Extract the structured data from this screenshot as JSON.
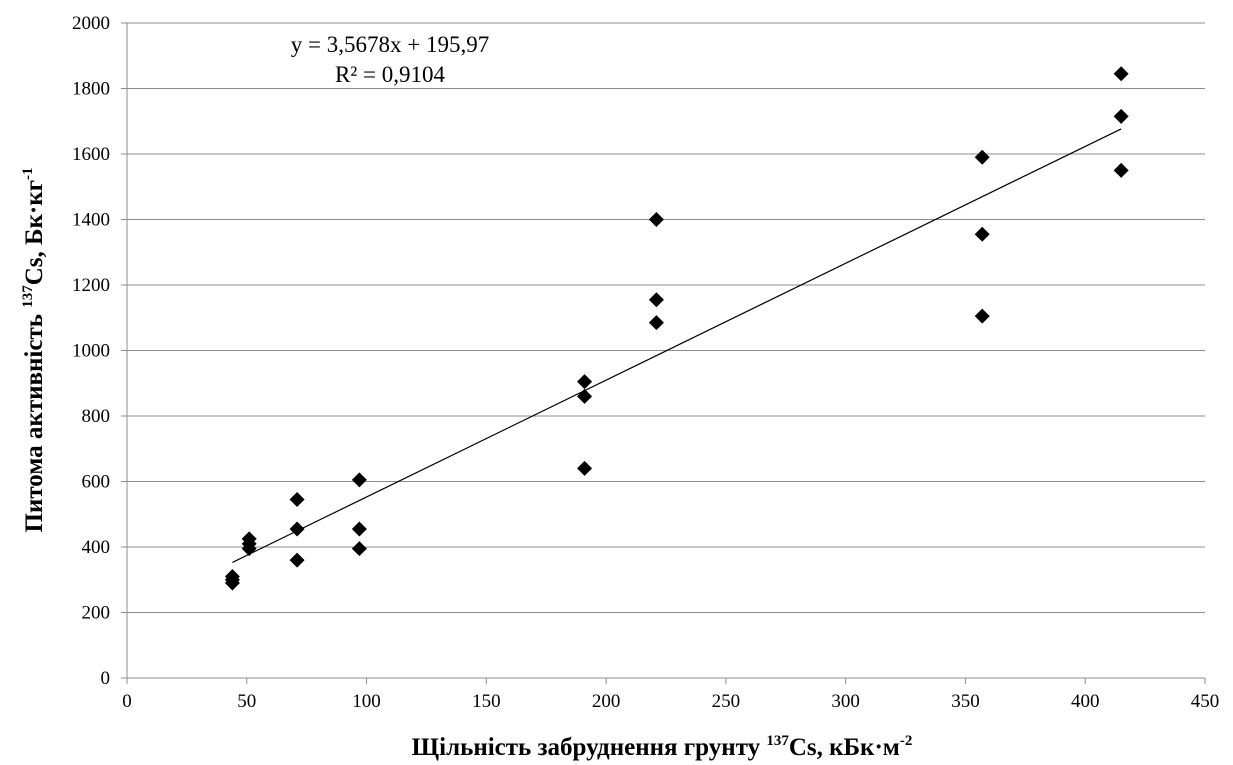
{
  "chart_data": {
    "type": "scatter",
    "xlabel": {
      "prefix": "Щільність забруднення грунту ",
      "isotope_mass": "137",
      "isotope": "Cs, кБк·м",
      "unit_exp": "-2"
    },
    "ylabel": {
      "prefix": "Питома активність ",
      "isotope_mass": "137",
      "isotope": "Cs, Бк·кг",
      "unit_exp": "-1"
    },
    "xlim": [
      0,
      450
    ],
    "ylim": [
      0,
      2000
    ],
    "x_ticks": [
      "0",
      "50",
      "100",
      "150",
      "200",
      "250",
      "300",
      "350",
      "400",
      "450"
    ],
    "y_ticks": [
      "0",
      "200",
      "400",
      "600",
      "800",
      "1000",
      "1200",
      "1400",
      "1600",
      "1800",
      "2000"
    ],
    "grid": "horizontal",
    "marker": "diamond",
    "marker_color": "#000000",
    "points": [
      {
        "x": 44,
        "y": 310
      },
      {
        "x": 44,
        "y": 300
      },
      {
        "x": 44,
        "y": 290
      },
      {
        "x": 51,
        "y": 425
      },
      {
        "x": 51,
        "y": 410
      },
      {
        "x": 51,
        "y": 395
      },
      {
        "x": 71,
        "y": 545
      },
      {
        "x": 71,
        "y": 455
      },
      {
        "x": 71,
        "y": 360
      },
      {
        "x": 97,
        "y": 605
      },
      {
        "x": 97,
        "y": 455
      },
      {
        "x": 97,
        "y": 395
      },
      {
        "x": 191,
        "y": 905
      },
      {
        "x": 191,
        "y": 860
      },
      {
        "x": 191,
        "y": 640
      },
      {
        "x": 221,
        "y": 1400
      },
      {
        "x": 221,
        "y": 1155
      },
      {
        "x": 221,
        "y": 1085
      },
      {
        "x": 357,
        "y": 1590
      },
      {
        "x": 357,
        "y": 1355
      },
      {
        "x": 357,
        "y": 1105
      },
      {
        "x": 415,
        "y": 1845
      },
      {
        "x": 415,
        "y": 1715
      },
      {
        "x": 415,
        "y": 1550
      }
    ],
    "trendline": {
      "slope": 3.5678,
      "intercept": 195.97,
      "x_range": [
        44,
        415
      ],
      "equation": "y = 3,5678x + 195,97",
      "r_squared": "R² = 0,9104"
    }
  }
}
